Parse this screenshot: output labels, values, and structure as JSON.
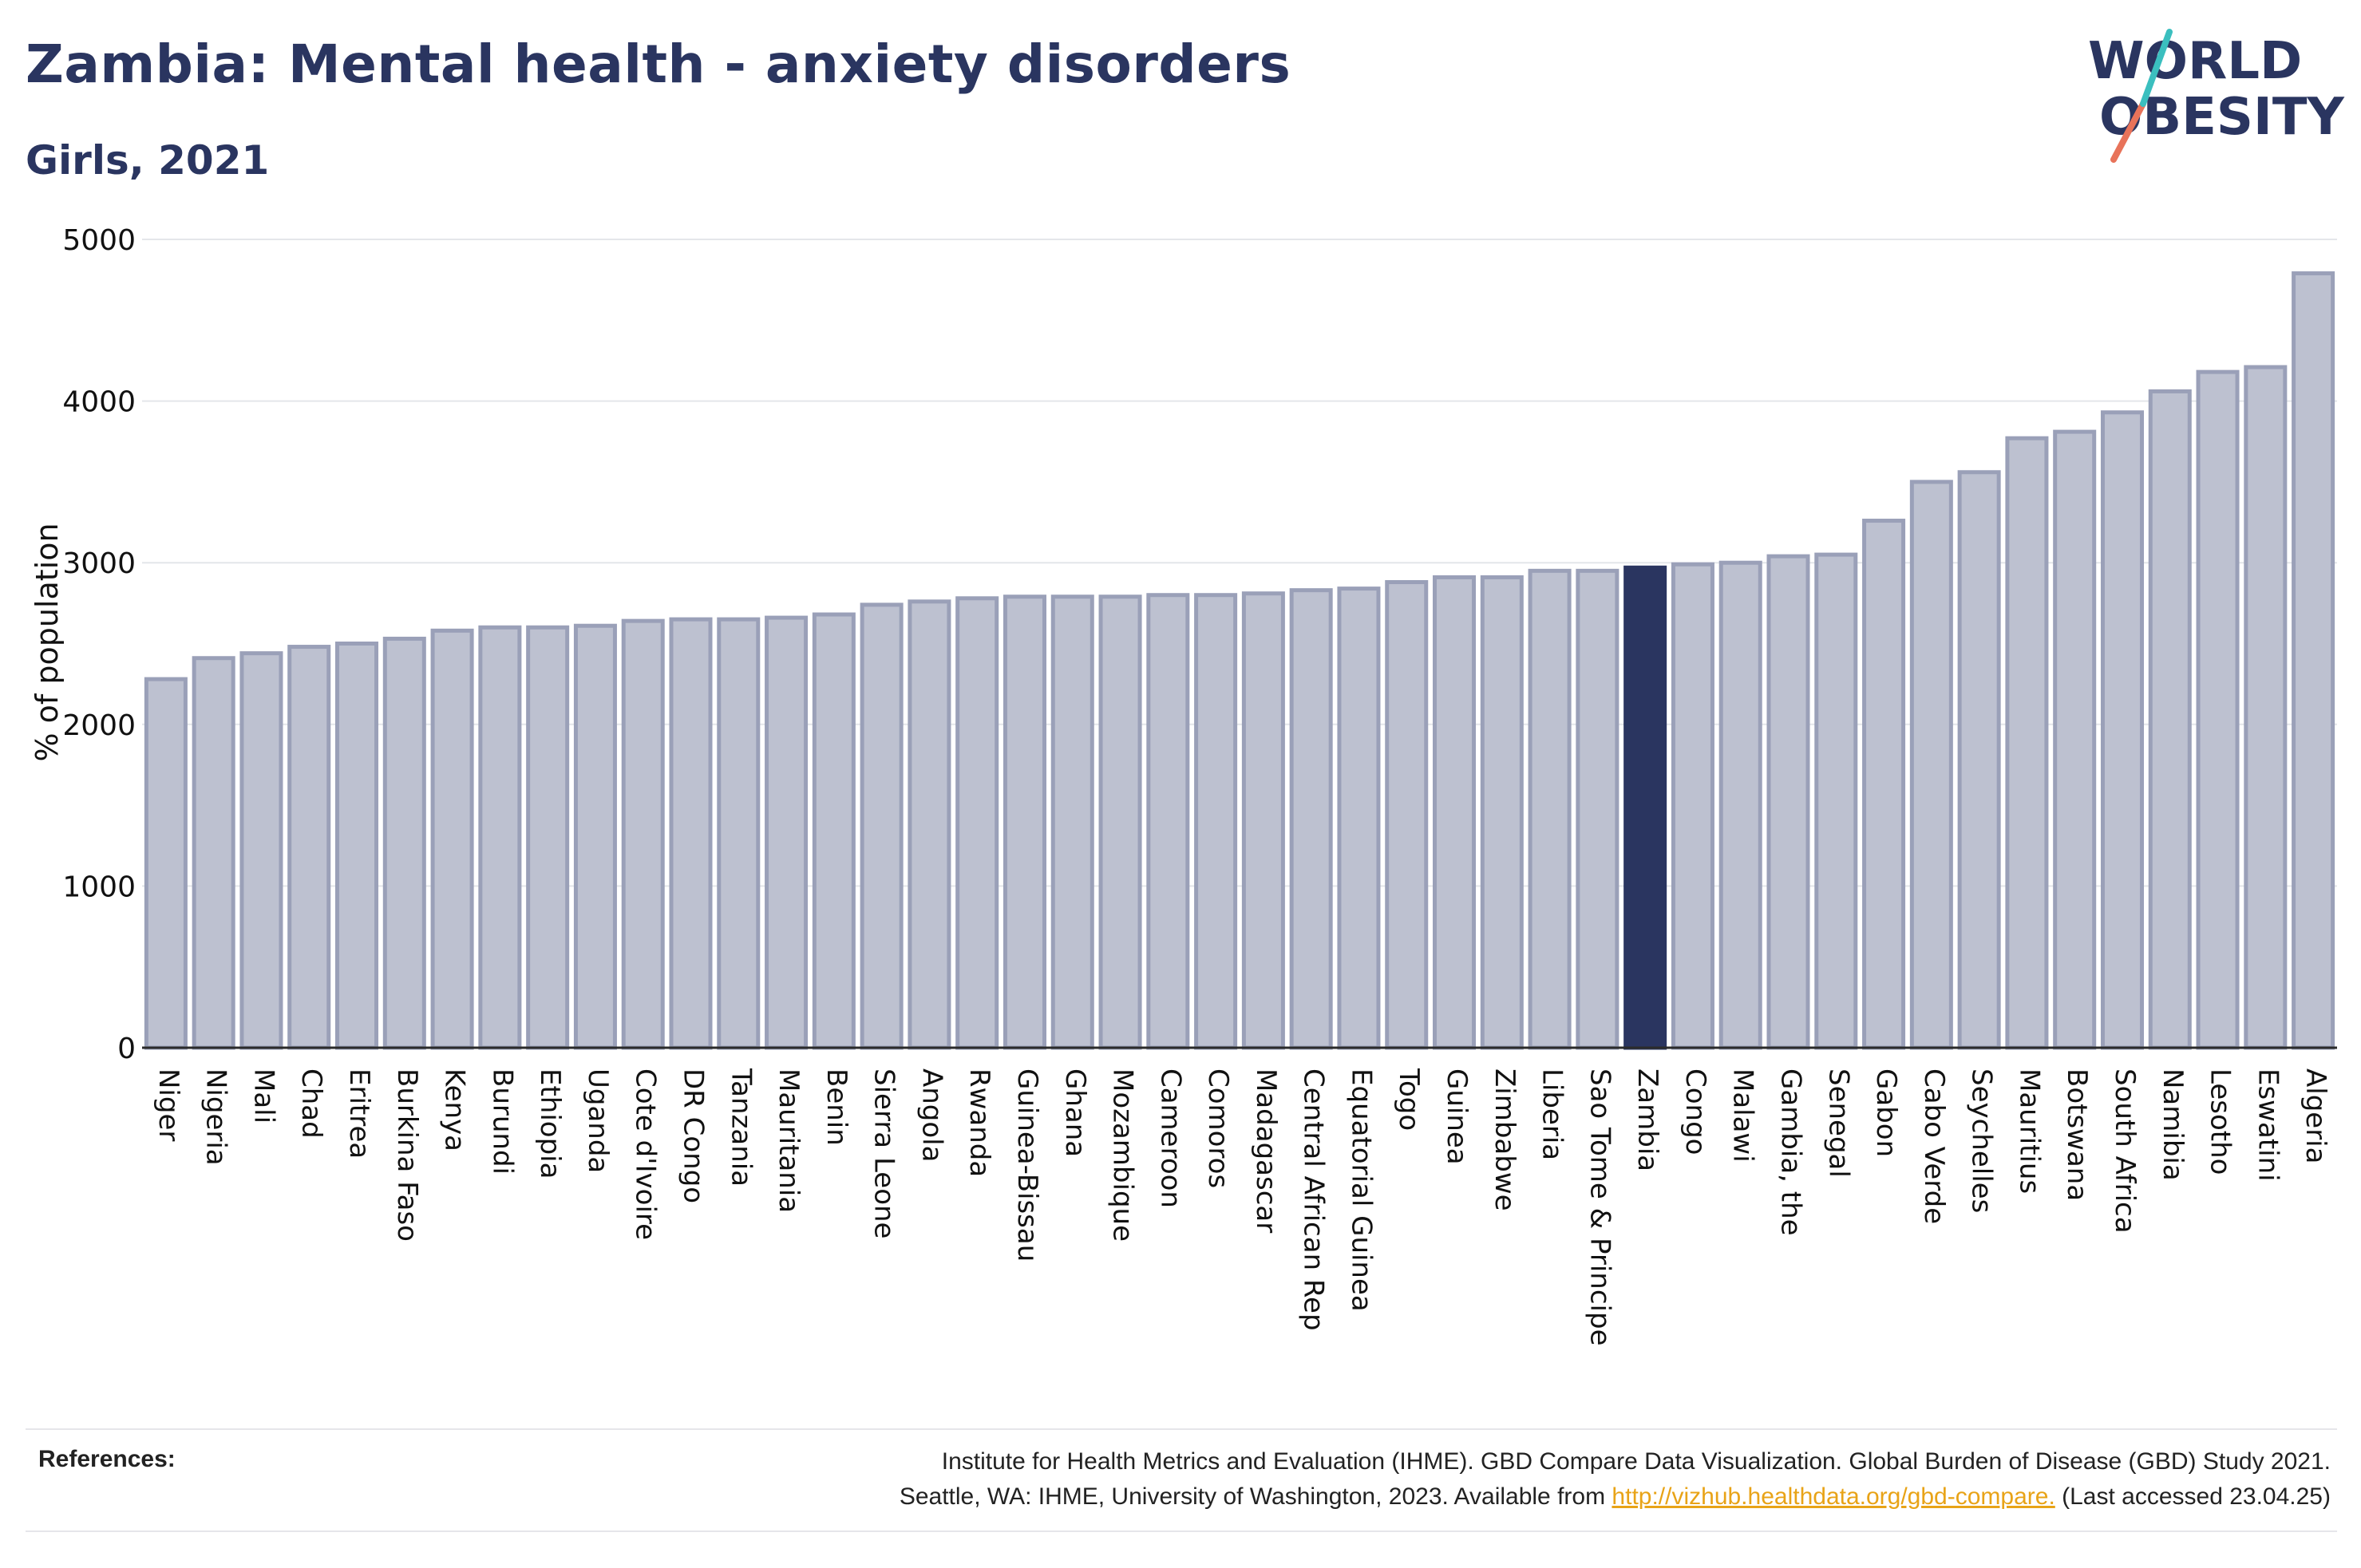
{
  "header": {
    "title": "Zambia: Mental health - anxiety disorders",
    "subtitle": "Girls, 2021"
  },
  "logo": {
    "line1": "WORLD",
    "line2": "OBESITY"
  },
  "colors": {
    "bar": "#bdc1d0",
    "bar_edge": "#9aa0b8",
    "highlight": "#2a3560",
    "grid": "#e4e6ea",
    "title": "#2a3560",
    "link": "#e8a317"
  },
  "chart_data": {
    "type": "bar",
    "title": "Zambia: Mental health - anxiety disorders",
    "subtitle": "Girls, 2021",
    "xlabel": "",
    "ylabel": "% of population",
    "ylim": [
      0,
      5000
    ],
    "yticks": [
      0,
      1000,
      2000,
      3000,
      4000,
      5000
    ],
    "grid": true,
    "highlight": "Zambia",
    "categories": [
      "Niger",
      "Nigeria",
      "Mali",
      "Chad",
      "Eritrea",
      "Burkina Faso",
      "Kenya",
      "Burundi",
      "Ethiopia",
      "Uganda",
      "Cote d'Ivoire",
      "DR Congo",
      "Tanzania",
      "Mauritania",
      "Benin",
      "Sierra Leone",
      "Angola",
      "Rwanda",
      "Guinea-Bissau",
      "Ghana",
      "Mozambique",
      "Cameroon",
      "Comoros",
      "Madagascar",
      "Central African Rep",
      "Equatorial Guinea",
      "Togo",
      "Guinea",
      "Zimbabwe",
      "Liberia",
      "Sao Tome & Principe",
      "Zambia",
      "Congo",
      "Malawi",
      "Gambia, the",
      "Senegal",
      "Gabon",
      "Cabo Verde",
      "Seychelles",
      "Mauritius",
      "Botswana",
      "South Africa",
      "Namibia",
      "Lesotho",
      "Eswatini",
      "Algeria"
    ],
    "values": [
      2280,
      2410,
      2440,
      2480,
      2500,
      2530,
      2580,
      2600,
      2600,
      2610,
      2640,
      2650,
      2650,
      2660,
      2680,
      2740,
      2760,
      2780,
      2790,
      2790,
      2790,
      2800,
      2800,
      2810,
      2830,
      2840,
      2880,
      2910,
      2910,
      2950,
      2950,
      2970,
      2990,
      3000,
      3040,
      3050,
      3260,
      3500,
      3560,
      3770,
      3810,
      3930,
      4060,
      4180,
      4210,
      4790
    ]
  },
  "references": {
    "label": "References:",
    "line1": "Institute for Health Metrics and Evaluation (IHME). GBD Compare Data Visualization. Global Burden of Disease (GBD) Study 2021.",
    "line2_prefix": "Seattle, WA: IHME, University of Washington, 2023. Available from ",
    "link": "http://vizhub.healthdata.org/gbd-compare.",
    "line2_suffix": " (Last accessed 23.04.25)"
  }
}
